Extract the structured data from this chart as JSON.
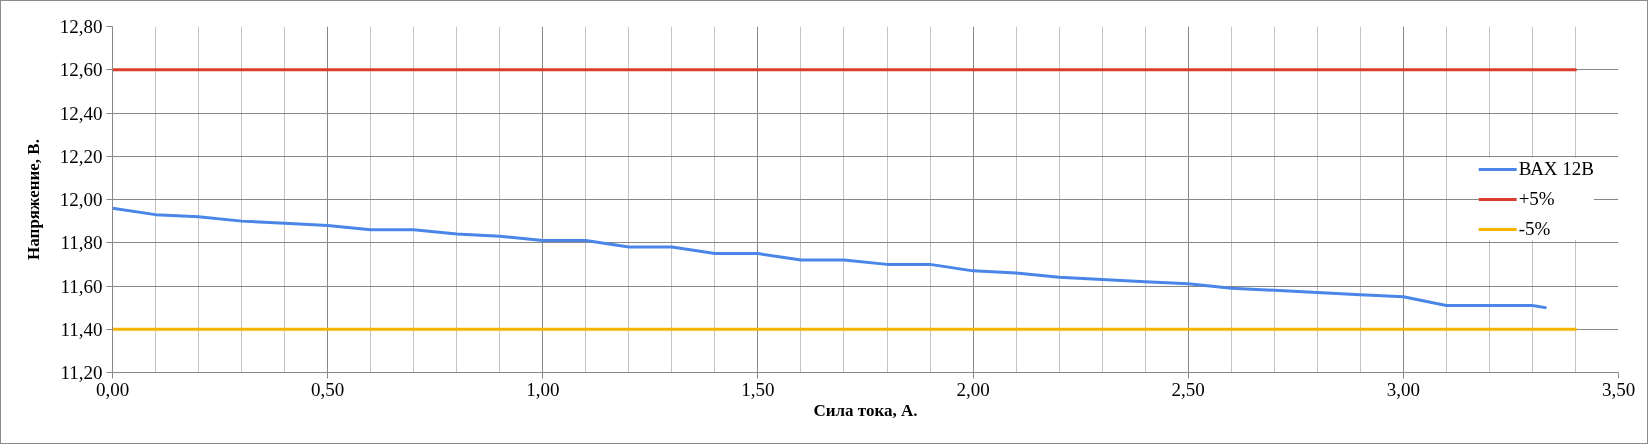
{
  "chart_data": {
    "type": "line",
    "xlabel": "Сила тока, А.",
    "ylabel": "Напряжение, В.",
    "series": [
      {
        "name": "ВАХ 12В",
        "color": "#4a86e8",
        "x": [
          0,
          0.1,
          0.2,
          0.3,
          0.4,
          0.5,
          0.6,
          0.7,
          0.8,
          0.9,
          1.0,
          1.1,
          1.2,
          1.3,
          1.4,
          1.5,
          1.6,
          1.7,
          1.8,
          1.9,
          2.0,
          2.1,
          2.2,
          2.3,
          2.4,
          2.5,
          2.6,
          2.7,
          2.8,
          2.9,
          3.0,
          3.1,
          3.2,
          3.3,
          3.33
        ],
        "values": [
          11.96,
          11.93,
          11.92,
          11.9,
          11.89,
          11.88,
          11.86,
          11.86,
          11.84,
          11.83,
          11.81,
          11.81,
          11.78,
          11.78,
          11.75,
          11.75,
          11.72,
          11.72,
          11.7,
          11.7,
          11.67,
          11.66,
          11.64,
          11.63,
          11.62,
          11.61,
          11.59,
          11.58,
          11.57,
          11.56,
          11.55,
          11.51,
          11.51,
          11.51,
          11.5
        ]
      },
      {
        "name": "+5%",
        "color": "#dc3c2c",
        "x": [
          0,
          3.4
        ],
        "values": [
          12.6,
          12.6
        ]
      },
      {
        "name": "-5%",
        "color": "#f4b400",
        "x": [
          0,
          3.4
        ],
        "values": [
          11.4,
          11.4
        ]
      }
    ],
    "xlim": [
      0,
      3.5
    ],
    "ylim": [
      11.2,
      12.8
    ],
    "xticks": [
      {
        "value": 0,
        "label": "0,00"
      },
      {
        "value": 0.1,
        "label": null
      },
      {
        "value": 0.2,
        "label": null
      },
      {
        "value": 0.3,
        "label": null
      },
      {
        "value": 0.4,
        "label": null
      },
      {
        "value": 0.5,
        "label": "0,50"
      },
      {
        "value": 0.6,
        "label": null
      },
      {
        "value": 0.7,
        "label": null
      },
      {
        "value": 0.8,
        "label": null
      },
      {
        "value": 0.9,
        "label": null
      },
      {
        "value": 1.0,
        "label": "1,00"
      },
      {
        "value": 1.1,
        "label": null
      },
      {
        "value": 1.2,
        "label": null
      },
      {
        "value": 1.3,
        "label": null
      },
      {
        "value": 1.4,
        "label": null
      },
      {
        "value": 1.5,
        "label": "1,50"
      },
      {
        "value": 1.6,
        "label": null
      },
      {
        "value": 1.7,
        "label": null
      },
      {
        "value": 1.8,
        "label": null
      },
      {
        "value": 1.9,
        "label": null
      },
      {
        "value": 2.0,
        "label": "2,00"
      },
      {
        "value": 2.1,
        "label": null
      },
      {
        "value": 2.2,
        "label": null
      },
      {
        "value": 2.3,
        "label": null
      },
      {
        "value": 2.4,
        "label": null
      },
      {
        "value": 2.5,
        "label": "2,50"
      },
      {
        "value": 2.6,
        "label": null
      },
      {
        "value": 2.7,
        "label": null
      },
      {
        "value": 2.8,
        "label": null
      },
      {
        "value": 2.9,
        "label": null
      },
      {
        "value": 3.0,
        "label": "3,00"
      },
      {
        "value": 3.1,
        "label": null
      },
      {
        "value": 3.2,
        "label": null
      },
      {
        "value": 3.3,
        "label": null
      },
      {
        "value": 3.4,
        "label": null
      },
      {
        "value": 3.5,
        "label": "3,50"
      }
    ],
    "yticks": [
      {
        "value": 11.2,
        "label": "11,20"
      },
      {
        "value": 11.4,
        "label": "11,40"
      },
      {
        "value": 11.6,
        "label": "11,60"
      },
      {
        "value": 11.8,
        "label": "11,80"
      },
      {
        "value": 12.0,
        "label": "12,00"
      },
      {
        "value": 12.2,
        "label": "12,20"
      },
      {
        "value": 12.4,
        "label": "12,40"
      },
      {
        "value": 12.6,
        "label": "12,60"
      },
      {
        "value": 12.8,
        "label": "12,80"
      }
    ],
    "grid": true,
    "legend": "right"
  }
}
